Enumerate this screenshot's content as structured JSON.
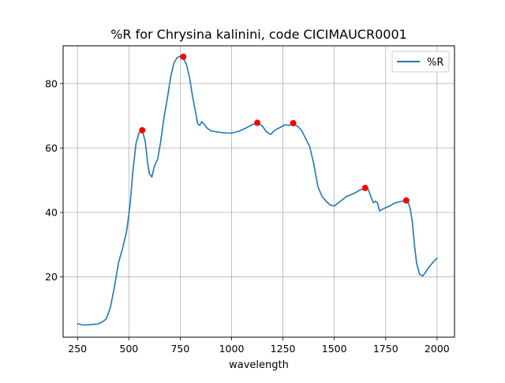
{
  "chart_data": {
    "type": "line",
    "title": "%R for Chrysina kalinini, code CICIMAUCR0001",
    "xlabel": "wavelength",
    "ylabel": "",
    "xlim": [
      180,
      2085
    ],
    "ylim": [
      1.3,
      91.7
    ],
    "xticks": [
      250,
      500,
      750,
      1000,
      1250,
      1500,
      1750,
      2000
    ],
    "yticks": [
      20,
      40,
      60,
      80
    ],
    "grid": true,
    "legend_position": "top-right",
    "series": [
      {
        "name": "%R",
        "color": "#1f77b4",
        "x": [
          250,
          275,
          300,
          315,
          330,
          350,
          370,
          390,
          410,
          430,
          450,
          470,
          490,
          505,
          520,
          535,
          550,
          565,
          580,
          590,
          600,
          612,
          625,
          640,
          655,
          670,
          690,
          705,
          720,
          735,
          750,
          765,
          780,
          795,
          810,
          825,
          835,
          845,
          855,
          865,
          880,
          900,
          930,
          960,
          1000,
          1040,
          1070,
          1100,
          1125,
          1150,
          1170,
          1190,
          1210,
          1240,
          1260,
          1280,
          1300,
          1320,
          1340,
          1360,
          1380,
          1400,
          1420,
          1440,
          1460,
          1480,
          1500,
          1520,
          1540,
          1560,
          1580,
          1600,
          1620,
          1640,
          1650,
          1665,
          1680,
          1690,
          1700,
          1710,
          1720,
          1735,
          1750,
          1770,
          1790,
          1810,
          1830,
          1850,
          1860,
          1870,
          1880,
          1890,
          1900,
          1915,
          1930,
          1945,
          1960,
          1980,
          2000
        ],
        "y": [
          5.5,
          5.1,
          5.1,
          5.2,
          5.3,
          5.4,
          6.0,
          7.0,
          10.5,
          17.0,
          24.5,
          29.0,
          34.5,
          42.0,
          53.0,
          61.5,
          64.8,
          65.5,
          62.0,
          56.0,
          52.0,
          51.0,
          54.5,
          56.5,
          62.0,
          69.0,
          76.5,
          82.5,
          86.5,
          88.0,
          88.5,
          87.8,
          86.0,
          82.0,
          76.0,
          71.0,
          67.5,
          67.0,
          68.2,
          67.5,
          66.2,
          65.3,
          65.0,
          64.7,
          64.6,
          65.3,
          66.2,
          67.2,
          67.8,
          66.8,
          65.0,
          64.2,
          65.5,
          66.5,
          67.2,
          67.0,
          67.5,
          66.8,
          65.5,
          63.0,
          60.5,
          55.0,
          48.0,
          45.0,
          43.5,
          42.3,
          42.0,
          43.0,
          44.0,
          45.0,
          45.5,
          46.0,
          46.8,
          47.3,
          47.5,
          47.2,
          44.5,
          43.0,
          43.5,
          43.0,
          40.5,
          41.0,
          41.5,
          42.0,
          42.8,
          43.2,
          43.5,
          43.6,
          43.0,
          41.0,
          37.0,
          30.0,
          24.5,
          20.8,
          20.3,
          21.5,
          23.0,
          24.5,
          25.8
        ]
      }
    ],
    "markers": {
      "color": "#ff0000",
      "x": [
        565,
        765,
        1125,
        1300,
        1650,
        1850
      ],
      "y": [
        65.5,
        88.3,
        67.8,
        67.7,
        47.6,
        43.7
      ]
    }
  }
}
